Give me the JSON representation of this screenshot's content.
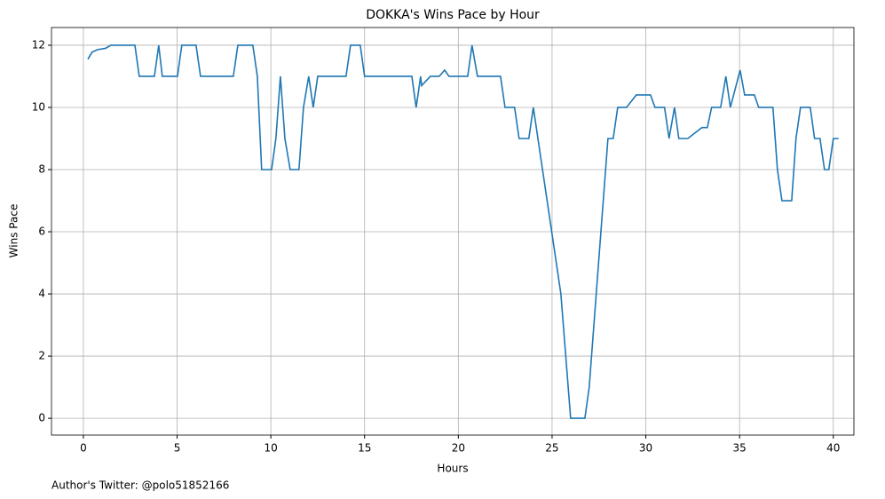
{
  "chart_data": {
    "type": "line",
    "title": "DOKKA's Wins Pace by Hour",
    "xlabel": "Hours",
    "ylabel": "Wins Pace",
    "annotation": "Author's Twitter: @polo51852166",
    "x": [
      0.24,
      0.47,
      0.76,
      1.18,
      1.47,
      2.75,
      2.98,
      3.79,
      4.02,
      4.21,
      5.02,
      5.25,
      6.01,
      6.25,
      8.0,
      8.24,
      9.04,
      9.28,
      9.51,
      10.04,
      10.27,
      10.51,
      10.75,
      11.03,
      11.5,
      11.74,
      12.02,
      12.26,
      12.5,
      14.01,
      14.25,
      14.77,
      15.0,
      17.52,
      17.75,
      17.99,
      18.04,
      18.51,
      18.98,
      19.27,
      19.5,
      20.5,
      20.73,
      21.02,
      22.25,
      22.49,
      23.0,
      23.24,
      23.76,
      24.0,
      25.47,
      25.99,
      26.75,
      26.98,
      27.98,
      28.26,
      28.5,
      28.97,
      29.49,
      30.25,
      30.49,
      31.0,
      31.24,
      31.53,
      31.76,
      32.24,
      32.99,
      33.28,
      33.51,
      33.99,
      34.27,
      34.51,
      35.03,
      35.27,
      35.79,
      36.02,
      36.78,
      37.02,
      37.26,
      37.78,
      38.01,
      38.25,
      38.77,
      39.0,
      39.29,
      39.53,
      39.76,
      40.0,
      40.28
    ],
    "series": [
      {
        "name": "Wins Pace",
        "color": "#1f77b4",
        "values": [
          11.55,
          11.78,
          11.86,
          11.9,
          12,
          12,
          11,
          11,
          12,
          11,
          11,
          12,
          12,
          11,
          11,
          12,
          12,
          11,
          8,
          8,
          9,
          11,
          9,
          8,
          8,
          10,
          11,
          10,
          11,
          11,
          12,
          12,
          11,
          11,
          10,
          11,
          10.7,
          11,
          11,
          11.2,
          11,
          11,
          12,
          11,
          11,
          10,
          10,
          9,
          9,
          10,
          4,
          0,
          0,
          1,
          9,
          9,
          10,
          10,
          10.4,
          10.4,
          10,
          10,
          9,
          10,
          9,
          9,
          9.35,
          9.35,
          10,
          10,
          11,
          10,
          11.2,
          10.4,
          10.4,
          10,
          10,
          8,
          7,
          7,
          9,
          10,
          10,
          9,
          9,
          8,
          8,
          9,
          9
        ]
      }
    ],
    "xlim": [
      -1.7,
      41.1
    ],
    "ylim": [
      -0.54,
      12.57
    ],
    "xticks": [
      0,
      5,
      10,
      15,
      20,
      25,
      30,
      35,
      40
    ],
    "yticks": [
      0,
      2,
      4,
      6,
      8,
      10,
      12
    ],
    "grid": true
  }
}
